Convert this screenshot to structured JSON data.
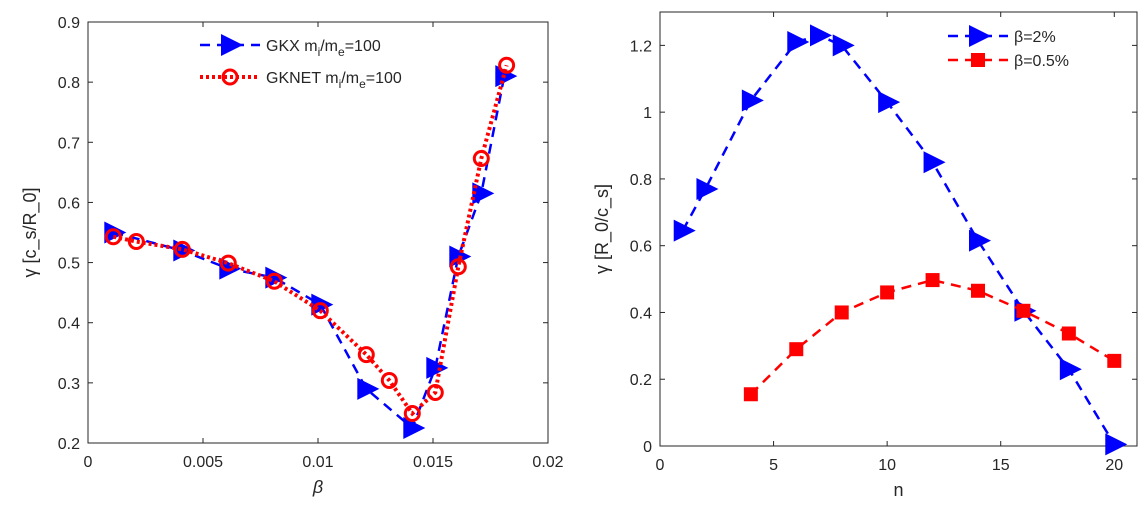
{
  "chart_data": [
    {
      "type": "line",
      "title": "",
      "xlabel": "β",
      "ylabel": "γ [c_s/R_0]",
      "xlim": [
        0,
        0.02
      ],
      "ylim": [
        0.2,
        0.9
      ],
      "xticks": [
        0,
        0.005,
        0.01,
        0.015,
        0.02
      ],
      "xtick_labels": [
        "0",
        "0.005",
        "0.01",
        "0.015",
        "0.02"
      ],
      "yticks": [
        0.2,
        0.3,
        0.4,
        0.5,
        0.6,
        0.7,
        0.8,
        0.9
      ],
      "ytick_labels": [
        "0.2",
        "0.3",
        "0.4",
        "0.5",
        "0.6",
        "0.7",
        "0.8",
        "0.9"
      ],
      "grid": false,
      "legend_position": "top-center",
      "series": [
        {
          "name": "GKX m_i/m_e=100",
          "legend_main": "GKX m",
          "color": "#0000ff",
          "marker": "triangle-right",
          "line": "dashed",
          "x": [
            0.0011,
            0.0041,
            0.0061,
            0.0081,
            0.0101,
            0.0121,
            0.0141,
            0.0151,
            0.0161,
            0.0171,
            0.0181
          ],
          "y": [
            0.55,
            0.52,
            0.49,
            0.475,
            0.43,
            0.29,
            0.225,
            0.325,
            0.51,
            0.615,
            0.81
          ]
        },
        {
          "name": "GKNET m_i/m_e=100",
          "legend_main": "GKNET m",
          "color": "#ff0000",
          "marker": "circle-open",
          "line": "dotted",
          "x": [
            0.0011,
            0.0021,
            0.0041,
            0.0061,
            0.0081,
            0.0101,
            0.0121,
            0.0131,
            0.0141,
            0.0151,
            0.0161,
            0.0171,
            0.0182
          ],
          "y": [
            0.543,
            0.535,
            0.522,
            0.499,
            0.469,
            0.42,
            0.347,
            0.304,
            0.249,
            0.284,
            0.493,
            0.673,
            0.828
          ]
        }
      ]
    },
    {
      "type": "line",
      "title": "",
      "xlabel": "n",
      "ylabel": "γ [R_0/c_s]",
      "xlim": [
        0,
        21
      ],
      "ylim": [
        0,
        1.3
      ],
      "xticks": [
        0,
        5,
        10,
        15,
        20
      ],
      "xtick_labels": [
        "0",
        "5",
        "10",
        "15",
        "20"
      ],
      "yticks": [
        0,
        0.2,
        0.4,
        0.6,
        0.8,
        1,
        1.2
      ],
      "ytick_labels": [
        "0",
        "0.2",
        "0.4",
        "0.6",
        "0.8",
        "1",
        "1.2"
      ],
      "grid": false,
      "legend_position": "top-right",
      "series": [
        {
          "name": "β=2%",
          "color": "#0000ff",
          "marker": "triangle-right",
          "line": "dashed",
          "x": [
            1,
            2,
            4,
            6,
            7,
            8,
            10,
            12,
            14,
            16,
            18,
            20
          ],
          "y": [
            0.645,
            0.77,
            1.035,
            1.21,
            1.23,
            1.2,
            1.03,
            0.85,
            0.615,
            0.405,
            0.23,
            0.005
          ]
        },
        {
          "name": "β=0.5%",
          "color": "#ff0000",
          "marker": "square",
          "line": "dashed",
          "x": [
            4,
            6,
            8,
            10,
            12,
            14,
            16,
            18,
            20
          ],
          "y": [
            0.155,
            0.29,
            0.4,
            0.46,
            0.497,
            0.465,
            0.405,
            0.337,
            0.255
          ]
        }
      ]
    }
  ]
}
